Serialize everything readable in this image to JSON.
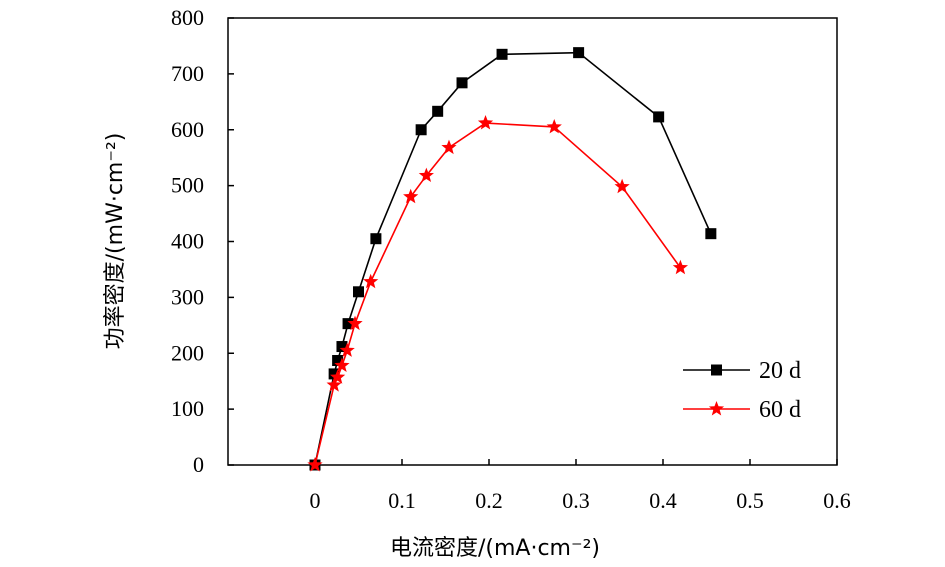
{
  "chart_data": {
    "type": "line",
    "xlabel": "电流密度/(mA·cm⁻²)",
    "ylabel": "功率密度/(mW·cm⁻²)",
    "xlim": [
      -0.1,
      0.6
    ],
    "ylim": [
      0,
      800
    ],
    "xticks": [
      0,
      0.1,
      0.2,
      0.3,
      0.4,
      0.5,
      0.6
    ],
    "xtick_labels": [
      "0",
      "0.1",
      "0.2",
      "0.3",
      "0.4",
      "0.5",
      "0.6"
    ],
    "yticks": [
      0,
      100,
      200,
      300,
      400,
      500,
      600,
      700,
      800
    ],
    "ytick_labels": [
      "0",
      "100",
      "200",
      "300",
      "400",
      "500",
      "600",
      "700",
      "800"
    ],
    "grid": false,
    "legend_position": "bottom-right",
    "series": [
      {
        "name": "20 d",
        "color": "#000000",
        "marker": "square",
        "x": [
          0,
          0.022,
          0.026,
          0.031,
          0.038,
          0.05,
          0.07,
          0.122,
          0.141,
          0.169,
          0.215,
          0.303,
          0.395,
          0.455
        ],
        "y": [
          0,
          163,
          187,
          212,
          253,
          310,
          405,
          600,
          633,
          684,
          735,
          738,
          623,
          414
        ]
      },
      {
        "name": "60 d",
        "color": "#ff0000",
        "marker": "star",
        "x": [
          0,
          0.022,
          0.026,
          0.031,
          0.037,
          0.046,
          0.064,
          0.11,
          0.128,
          0.154,
          0.196,
          0.275,
          0.353,
          0.42
        ],
        "y": [
          0,
          143,
          157,
          178,
          205,
          253,
          328,
          480,
          518,
          568,
          612,
          605,
          498,
          353
        ]
      }
    ]
  }
}
